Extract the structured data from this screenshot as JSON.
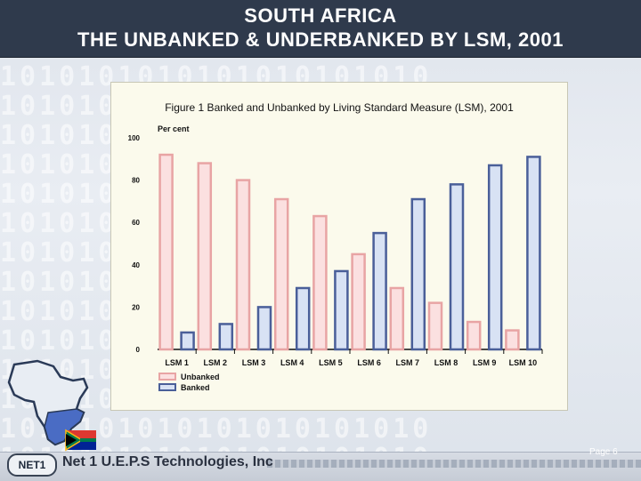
{
  "header": {
    "title_line1": "SOUTH AFRICA",
    "title_line2": "THE UNBANKED & UNDERBANKED BY LSM, 2001"
  },
  "chart_data": {
    "type": "bar",
    "title": "Figure 1 Banked and Unbanked by Living Standard Measure (LSM), 2001",
    "ylabel": "Per cent",
    "xlabel": "",
    "ylim": [
      0,
      100
    ],
    "yticks": [
      0,
      20,
      40,
      60,
      80,
      100
    ],
    "grid": false,
    "legend_position": "bottom-left",
    "categories": [
      "LSM 1",
      "LSM 2",
      "LSM 3",
      "LSM 4",
      "LSM 5",
      "LSM 6",
      "LSM 7",
      "LSM 8",
      "LSM 9",
      "LSM 10"
    ],
    "series": [
      {
        "name": "Unbanked",
        "color": "#e8a4a4",
        "fill": "#fbe0e0",
        "values": [
          92,
          88,
          80,
          71,
          63,
          45,
          29,
          22,
          13,
          9
        ]
      },
      {
        "name": "Banked",
        "color": "#4a5f99",
        "fill": "#d8e2f4",
        "values": [
          8,
          12,
          20,
          29,
          37,
          55,
          71,
          78,
          87,
          91
        ]
      }
    ]
  },
  "footer": {
    "badge": "NET1",
    "company": "Net 1 U.E.P.S Technologies, Inc",
    "page": "Page 6"
  },
  "background_text": "1010101010101010101010"
}
